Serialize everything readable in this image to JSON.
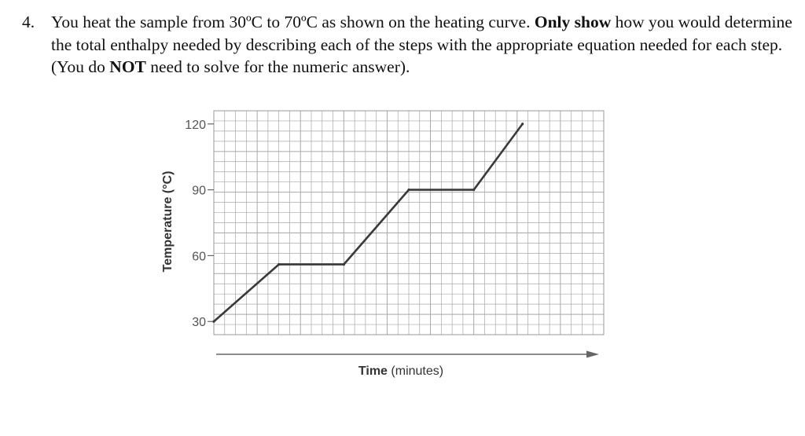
{
  "question": {
    "number": "4.",
    "text_1": "You heat the sample from 30ºC to 70ºC as shown on the heating curve. ",
    "bold_1": "Only show",
    "text_2": " how you would determine the total enthalpy needed by describing each of the steps with the appropriate equation needed for each step.  (You do ",
    "bold_2": "NOT",
    "text_3": " need to solve for the numeric answer)."
  },
  "chart_data": {
    "type": "line",
    "title": "",
    "xlabel_bold": "Time",
    "xlabel_unit": "(minutes)",
    "ylabel": "Temperature (°C)",
    "ytick_labels": [
      "120",
      "90",
      "60",
      "30"
    ],
    "yticks": [
      120,
      90,
      60,
      30
    ],
    "ylim": [
      24,
      126
    ],
    "xlim": [
      0,
      24
    ],
    "grid": true,
    "series": [
      {
        "x": [
          0,
          4,
          8,
          12,
          16,
          19
        ],
        "y": [
          30,
          56,
          56,
          90,
          90,
          120
        ]
      }
    ],
    "colors": {
      "line": "#3a3a3a",
      "grid": "#a8a8a8",
      "text": "#555555"
    }
  }
}
